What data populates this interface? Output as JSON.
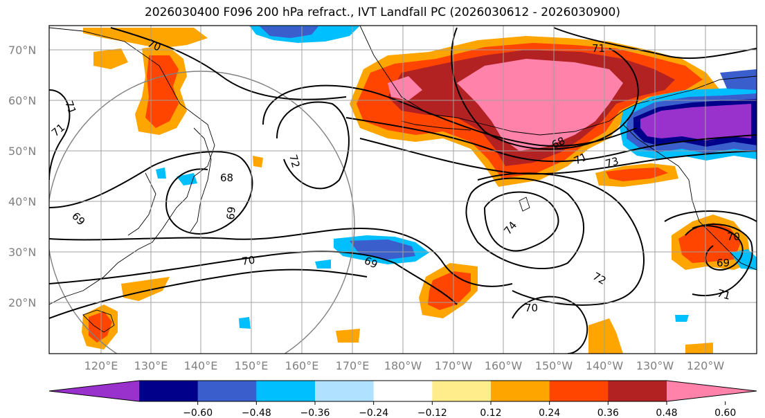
{
  "title": "2026030400 F096 200 hPa refract., IVT Landfall PC (2026030612 - 2026030900)",
  "lat_labels": [
    "70°N",
    "60°N",
    "50°N",
    "40°N",
    "30°N",
    "20°N"
  ],
  "lon_labels": [
    "120°E",
    "130°E",
    "140°E",
    "150°E",
    "160°E",
    "170°E",
    "180°W",
    "170°W",
    "160°W",
    "150°W",
    "140°W",
    "130°W",
    "120°W"
  ],
  "contour_labels": [
    "70",
    "71",
    "71",
    "68",
    "72",
    "69",
    "70",
    "69",
    "69",
    "68",
    "71",
    "73",
    "74",
    "72",
    "70",
    "70",
    "69",
    "71",
    "71"
  ],
  "colorbar": {
    "tick_labels": [
      "−0.60",
      "−0.48",
      "−0.36",
      "−0.24",
      "−0.12",
      "0.12",
      "0.24",
      "0.36",
      "0.48",
      "0.60"
    ],
    "colors": [
      "#9932cc",
      "#00008b",
      "#3a5fcd",
      "#00bfff",
      "#b0e2ff",
      "#ffffff",
      "#ffec8b",
      "#ffa500",
      "#ff4500",
      "#b22222",
      "#ff82ab"
    ]
  },
  "colors": {
    "grid": "#a0a0a0",
    "coast": "#000000",
    "contour": "#000000",
    "circle": "#808080"
  }
}
